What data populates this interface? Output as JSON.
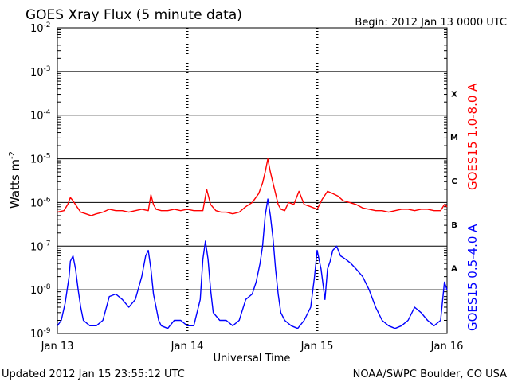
{
  "chart_data": {
    "type": "line",
    "title": "GOES Xray Flux (5 minute data)",
    "begin_label": "Begin:  2012 Jan 13 0000 UTC",
    "ylabel": "Watts m",
    "ylabel_sup": "-2",
    "xlabel": "Universal Time",
    "y_scale": "log",
    "ylim": [
      1e-09,
      0.01
    ],
    "y_ticks": [
      {
        "base": "10",
        "exp": "-2"
      },
      {
        "base": "10",
        "exp": "-3"
      },
      {
        "base": "10",
        "exp": "-4"
      },
      {
        "base": "10",
        "exp": "-5"
      },
      {
        "base": "10",
        "exp": "-6"
      },
      {
        "base": "10",
        "exp": "-7"
      },
      {
        "base": "10",
        "exp": "-8"
      },
      {
        "base": "10",
        "exp": "-9"
      }
    ],
    "x_unit": "days since Jan 13 0000 UTC",
    "xlim": [
      0,
      3
    ],
    "x_ticks": [
      "Jan 13",
      "Jan 14",
      "Jan 15",
      "Jan 16"
    ],
    "flare_classes": [
      "X",
      "M",
      "C",
      "B",
      "A"
    ],
    "grid": true,
    "series": [
      {
        "name": "GOES15 1.0-8.0 A",
        "color": "#ff0000",
        "x": [
          0,
          0.05,
          0.08,
          0.1,
          0.12,
          0.15,
          0.18,
          0.22,
          0.26,
          0.3,
          0.35,
          0.4,
          0.45,
          0.5,
          0.55,
          0.6,
          0.65,
          0.7,
          0.72,
          0.74,
          0.76,
          0.8,
          0.85,
          0.9,
          0.95,
          1.0,
          1.05,
          1.12,
          1.15,
          1.18,
          1.22,
          1.26,
          1.3,
          1.35,
          1.4,
          1.45,
          1.5,
          1.55,
          1.58,
          1.6,
          1.62,
          1.64,
          1.66,
          1.68,
          1.7,
          1.72,
          1.75,
          1.78,
          1.82,
          1.86,
          1.9,
          1.95,
          2.0,
          2.04,
          2.08,
          2.12,
          2.16,
          2.2,
          2.25,
          2.3,
          2.35,
          2.4,
          2.45,
          2.5,
          2.55,
          2.6,
          2.65,
          2.7,
          2.75,
          2.8,
          2.85,
          2.9,
          2.95,
          2.98,
          3.0
        ],
        "y": [
          6e-07,
          6.5e-07,
          9e-07,
          1.3e-06,
          1.1e-06,
          8e-07,
          6e-07,
          5.5e-07,
          5e-07,
          5.5e-07,
          6e-07,
          7e-07,
          6.5e-07,
          6.5e-07,
          6e-07,
          6.5e-07,
          7e-07,
          6.5e-07,
          1.5e-06,
          9e-07,
          7e-07,
          6.5e-07,
          6.5e-07,
          7e-07,
          6.5e-07,
          7e-07,
          6.5e-07,
          6.5e-07,
          2e-06,
          9e-07,
          6.5e-07,
          6e-07,
          6e-07,
          5.5e-07,
          6e-07,
          8e-07,
          1e-06,
          1.6e-06,
          2.8e-06,
          5e-06,
          1e-05,
          5e-06,
          2.8e-06,
          1.6e-06,
          9e-07,
          7e-07,
          6.5e-07,
          1e-06,
          9e-07,
          1.8e-06,
          9e-07,
          8e-07,
          7e-07,
          1.2e-06,
          1.8e-06,
          1.6e-06,
          1.4e-06,
          1.1e-06,
          1e-06,
          9e-07,
          7.5e-07,
          7e-07,
          6.5e-07,
          6.5e-07,
          6e-07,
          6.5e-07,
          7e-07,
          7e-07,
          6.5e-07,
          7e-07,
          7e-07,
          6.5e-07,
          6.5e-07,
          9e-07,
          8e-07
        ]
      },
      {
        "name": "GOES15 0.5-4.0 A",
        "color": "#0000ff",
        "x": [
          0,
          0.03,
          0.06,
          0.09,
          0.1,
          0.12,
          0.14,
          0.16,
          0.18,
          0.2,
          0.25,
          0.3,
          0.35,
          0.4,
          0.45,
          0.5,
          0.55,
          0.6,
          0.65,
          0.68,
          0.7,
          0.72,
          0.74,
          0.76,
          0.78,
          0.8,
          0.85,
          0.9,
          0.95,
          1.0,
          1.05,
          1.1,
          1.12,
          1.14,
          1.16,
          1.18,
          1.2,
          1.25,
          1.3,
          1.35,
          1.4,
          1.45,
          1.5,
          1.53,
          1.56,
          1.58,
          1.6,
          1.62,
          1.64,
          1.66,
          1.68,
          1.7,
          1.72,
          1.75,
          1.8,
          1.85,
          1.9,
          1.95,
          1.98,
          2.0,
          2.03,
          2.06,
          2.08,
          2.1,
          2.12,
          2.15,
          2.18,
          2.22,
          2.26,
          2.3,
          2.35,
          2.4,
          2.45,
          2.5,
          2.55,
          2.6,
          2.65,
          2.7,
          2.75,
          2.8,
          2.85,
          2.9,
          2.95,
          2.98,
          3.0
        ],
        "y": [
          1.5e-09,
          2e-09,
          5e-09,
          2e-08,
          4.5e-08,
          6e-08,
          3e-08,
          1e-08,
          4e-09,
          2e-09,
          1.5e-09,
          1.5e-09,
          2e-09,
          7e-09,
          8e-09,
          6e-09,
          4e-09,
          6e-09,
          2e-08,
          6e-08,
          8e-08,
          3e-08,
          8e-09,
          4e-09,
          2e-09,
          1.5e-09,
          1.3e-09,
          2e-09,
          2e-09,
          1.5e-09,
          1.5e-09,
          6e-09,
          5e-08,
          1.3e-07,
          5e-08,
          1e-08,
          3e-09,
          2e-09,
          2e-09,
          1.5e-09,
          2e-09,
          6e-09,
          8e-09,
          1.5e-08,
          4e-08,
          1e-07,
          5e-07,
          1.2e-06,
          5e-07,
          1.5e-07,
          3e-08,
          8e-09,
          3e-09,
          2e-09,
          1.5e-09,
          1.3e-09,
          2e-09,
          4e-09,
          2e-08,
          8e-08,
          3e-08,
          6e-09,
          3e-08,
          4.5e-08,
          8e-08,
          1e-07,
          6e-08,
          5e-08,
          4e-08,
          3e-08,
          2e-08,
          1e-08,
          4e-09,
          2e-09,
          1.5e-09,
          1.3e-09,
          1.5e-09,
          2e-09,
          4e-09,
          3e-09,
          2e-09,
          1.5e-09,
          2e-09,
          1.5e-08,
          1e-08
        ]
      }
    ]
  },
  "footer": {
    "updated": "Updated 2012 Jan 15 23:55:12 UTC",
    "credit": "NOAA/SWPC Boulder, CO USA"
  }
}
